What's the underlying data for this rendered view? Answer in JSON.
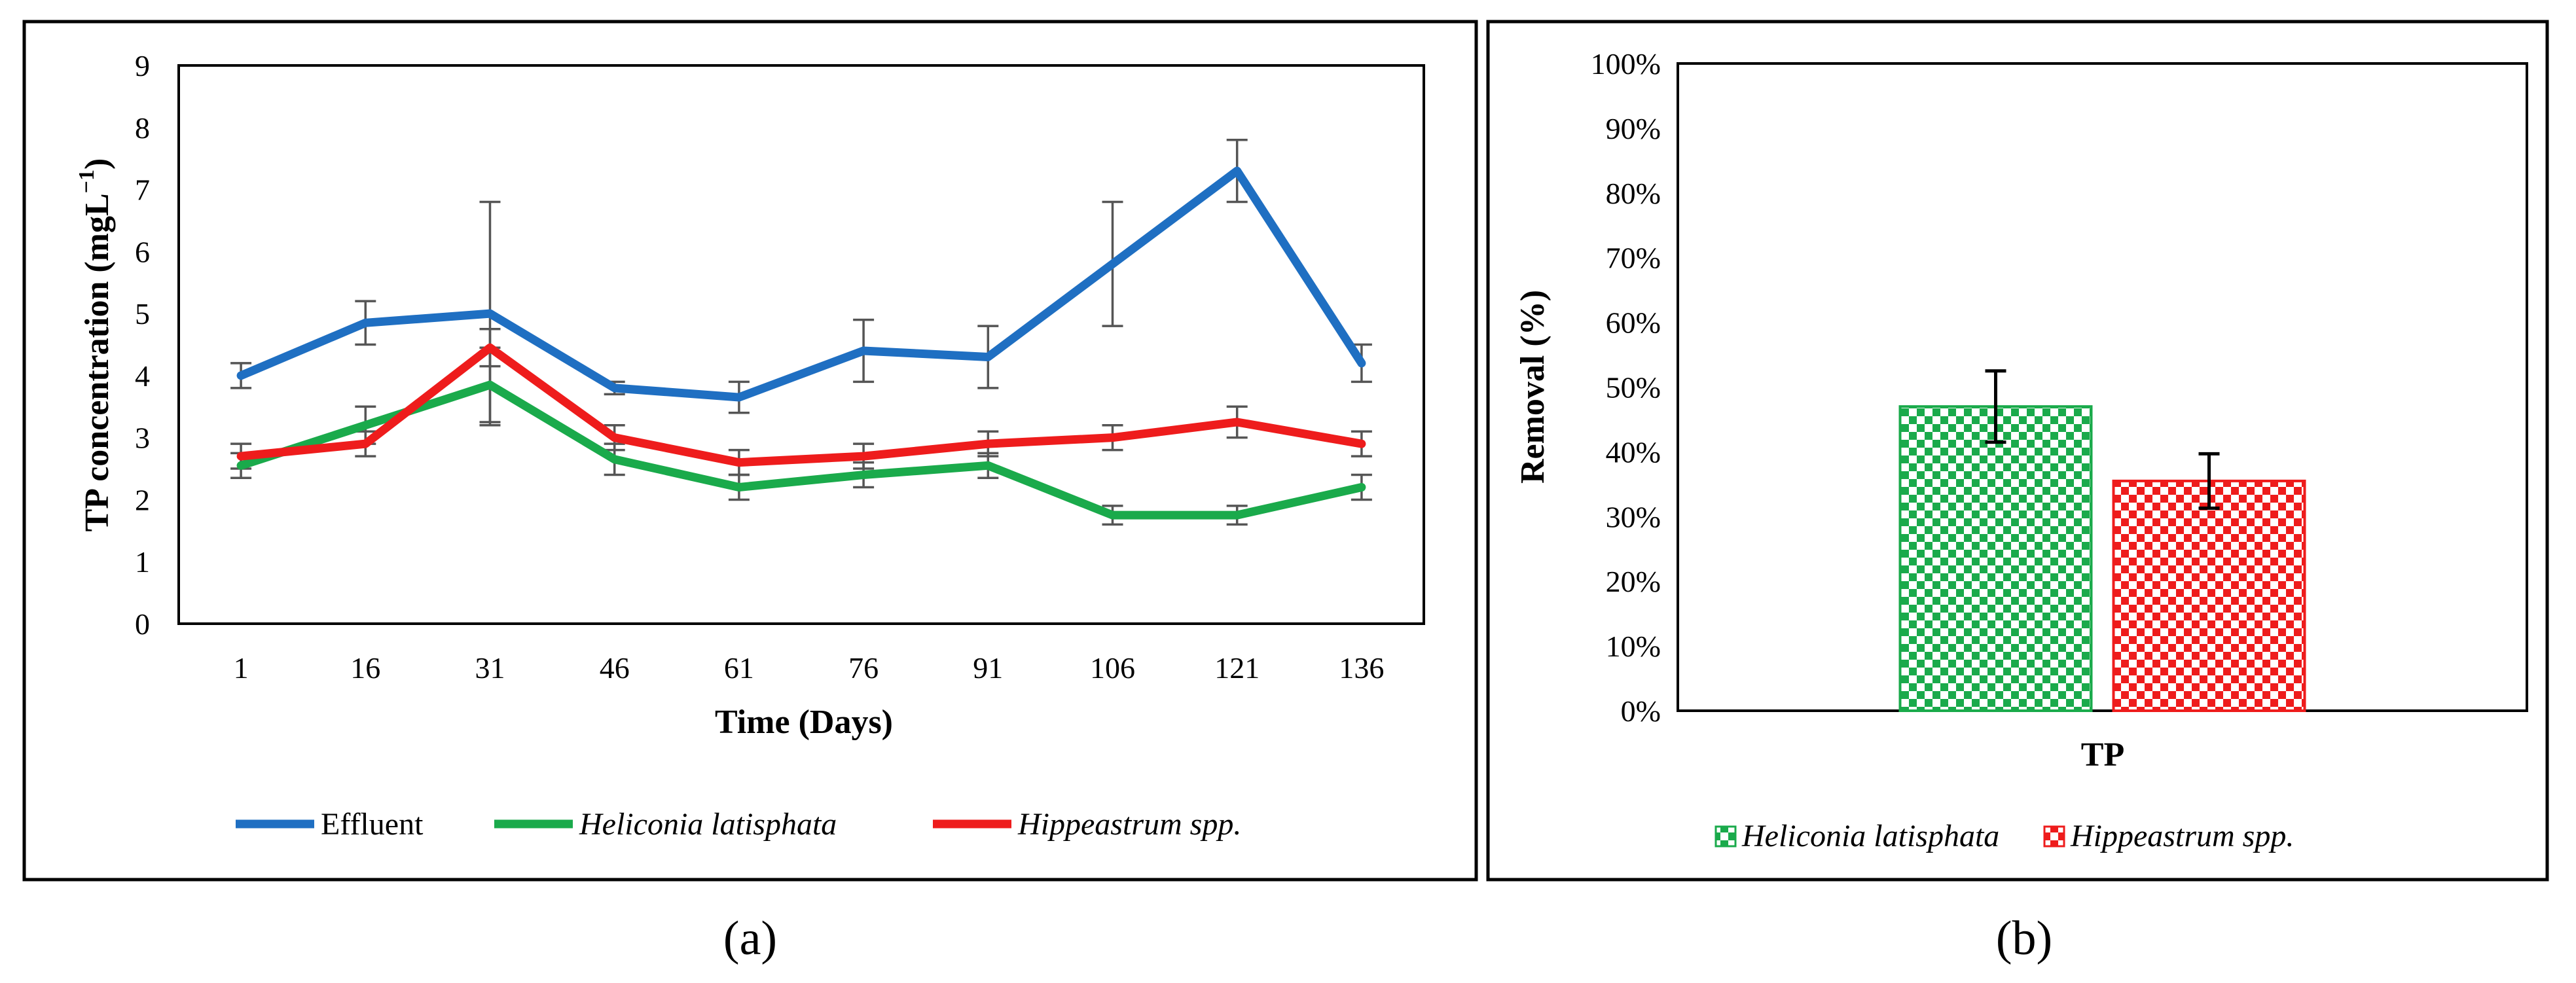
{
  "chart_data": [
    {
      "panel": "(a)",
      "type": "line",
      "xlabel": "Time (Days)",
      "ylabel": "TP concentration (mgL",
      "ylabel_exp": "−1",
      "ylabel_close": ")",
      "ylim": [
        0,
        9
      ],
      "yticks": [
        "0",
        "1",
        "2",
        "3",
        "4",
        "5",
        "6",
        "7",
        "8",
        "9"
      ],
      "categories": [
        "1",
        "16",
        "31",
        "46",
        "61",
        "76",
        "91",
        "106",
        "121",
        "136"
      ],
      "series": [
        {
          "name": "Effluent",
          "italic": false,
          "color": "#1f6fc2",
          "values": [
            4.0,
            4.85,
            5.0,
            3.8,
            3.65,
            4.4,
            4.3,
            5.8,
            7.3,
            4.2
          ],
          "errors": [
            0.2,
            0.35,
            1.8,
            0.1,
            0.25,
            0.5,
            0.5,
            1.0,
            0.5,
            0.3
          ]
        },
        {
          "name": "Heliconia latisphata",
          "italic": true,
          "color": "#1aaa4b",
          "values": [
            2.55,
            3.2,
            3.85,
            2.65,
            2.2,
            2.4,
            2.55,
            1.75,
            1.75,
            2.2
          ],
          "errors": [
            0.2,
            0.3,
            0.6,
            0.25,
            0.2,
            0.2,
            0.2,
            0.15,
            0.15,
            0.2
          ]
        },
        {
          "name": "Hippeastrum spp.",
          "italic": true,
          "color": "#ee1c1c",
          "values": [
            2.7,
            2.9,
            4.45,
            3.0,
            2.6,
            2.7,
            2.9,
            3.0,
            3.25,
            2.9
          ],
          "errors": [
            0.2,
            0.2,
            0.3,
            0.2,
            0.2,
            0.2,
            0.2,
            0.2,
            0.25,
            0.2
          ]
        }
      ]
    },
    {
      "panel": "(b)",
      "type": "bar",
      "xlabel": "TP",
      "ylabel": "Removal (%)",
      "ylim": [
        0,
        100
      ],
      "yticks": [
        "0%",
        "10%",
        "20%",
        "30%",
        "40%",
        "50%",
        "60%",
        "70%",
        "80%",
        "90%",
        "100%"
      ],
      "categories": [
        "TP"
      ],
      "series": [
        {
          "name": "Heliconia latisphata",
          "italic": true,
          "color": "#1aaa4b",
          "values": [
            47
          ],
          "errors": [
            5.5
          ]
        },
        {
          "name": "Hippeastrum spp.",
          "italic": true,
          "color": "#ee1c1c",
          "values": [
            35.5
          ],
          "errors": [
            4.2
          ]
        }
      ]
    }
  ]
}
